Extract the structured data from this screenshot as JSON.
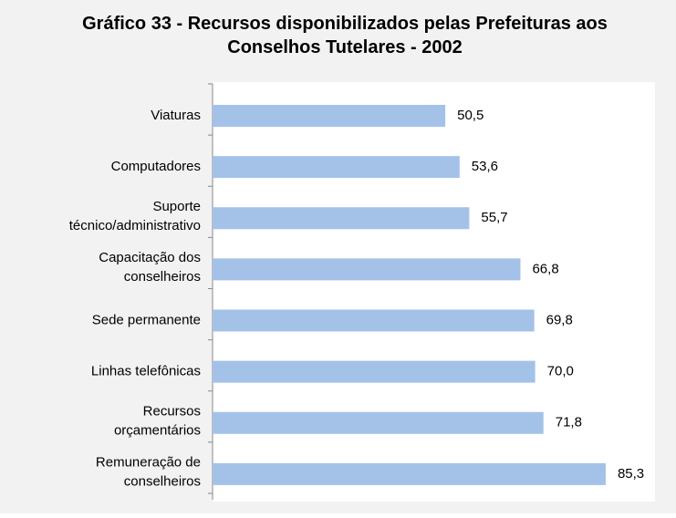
{
  "chart_data": {
    "type": "bar",
    "orientation": "horizontal",
    "title": "Gráfico 33 - Recursos disponibilizados pelas Prefeituras aos\nConselhos Tutelares - 2002",
    "categories": [
      "Viaturas",
      "Computadores",
      "Suporte\ntécnico/administrativo",
      "Capacitação dos\nconselheiros",
      "Sede permanente",
      "Linhas telefônicas",
      "Recursos\norçamentários",
      "Remuneração de\nconselheiros"
    ],
    "values": [
      50.5,
      53.6,
      55.7,
      66.8,
      69.8,
      70.0,
      71.8,
      85.3
    ],
    "value_labels": [
      "50,5",
      "53,6",
      "55,7",
      "66,8",
      "69,8",
      "70,0",
      "71,8",
      "85,3"
    ],
    "color": "#a4c2e8",
    "xlim": [
      0,
      96
    ]
  }
}
